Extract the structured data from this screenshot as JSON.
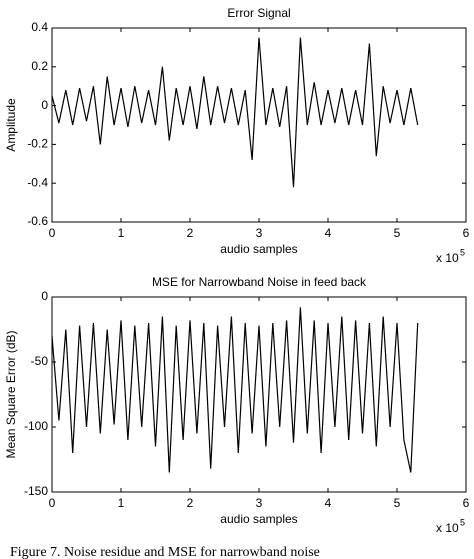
{
  "chart_data": [
    {
      "type": "line",
      "title": "Error Signal",
      "x_label": "audio samples",
      "y_label": "Amplitude",
      "x_multiplier": "x 10",
      "x_exponent": "5",
      "color": "#000000",
      "xlim": [
        0,
        6
      ],
      "xticks": [
        0,
        1,
        2,
        3,
        4,
        5,
        6
      ],
      "ylim": [
        -0.6,
        0.4
      ],
      "yticks": [
        -0.6,
        -0.4,
        -0.2,
        0,
        0.2,
        0.4
      ],
      "x": [
        0,
        0.1,
        0.2,
        0.3,
        0.4,
        0.5,
        0.6,
        0.7,
        0.8,
        0.9,
        1.0,
        1.1,
        1.2,
        1.3,
        1.4,
        1.5,
        1.6,
        1.7,
        1.8,
        1.9,
        2.0,
        2.1,
        2.2,
        2.3,
        2.4,
        2.5,
        2.6,
        2.7,
        2.8,
        2.9,
        3.0,
        3.1,
        3.2,
        3.3,
        3.4,
        3.5,
        3.6,
        3.7,
        3.8,
        3.9,
        4.0,
        4.1,
        4.2,
        4.3,
        4.4,
        4.5,
        4.6,
        4.7,
        4.8,
        4.9,
        5.0,
        5.1,
        5.2,
        5.3
      ],
      "values": [
        0.05,
        -0.09,
        0.08,
        -0.1,
        0.09,
        -0.08,
        0.1,
        -0.2,
        0.15,
        -0.1,
        0.09,
        -0.11,
        0.1,
        -0.09,
        0.08,
        -0.1,
        0.2,
        -0.18,
        0.09,
        -0.1,
        0.1,
        -0.12,
        0.15,
        -0.1,
        0.1,
        -0.09,
        0.09,
        -0.1,
        0.08,
        -0.28,
        0.35,
        -0.1,
        0.09,
        -0.11,
        0.1,
        -0.42,
        0.35,
        -0.1,
        0.12,
        -0.1,
        0.08,
        -0.09,
        0.09,
        -0.1,
        0.08,
        -0.1,
        0.32,
        -0.26,
        0.1,
        -0.09,
        0.08,
        -0.1,
        0.09,
        -0.1
      ]
    },
    {
      "type": "line",
      "title": "MSE for Narrowband Noise in feed back",
      "x_label": "audio samples",
      "y_label": "Mean Square Error (dB)",
      "x_multiplier": "x 10",
      "x_exponent": "5",
      "color": "#000000",
      "xlim": [
        0,
        6
      ],
      "xticks": [
        0,
        1,
        2,
        3,
        4,
        5,
        6
      ],
      "ylim": [
        -150,
        0
      ],
      "yticks": [
        -150,
        -100,
        -50,
        0
      ],
      "x": [
        0,
        0.1,
        0.2,
        0.3,
        0.4,
        0.5,
        0.6,
        0.7,
        0.8,
        0.9,
        1.0,
        1.1,
        1.2,
        1.3,
        1.4,
        1.5,
        1.6,
        1.7,
        1.8,
        1.9,
        2.0,
        2.1,
        2.2,
        2.3,
        2.4,
        2.5,
        2.6,
        2.7,
        2.8,
        2.9,
        3.0,
        3.1,
        3.2,
        3.3,
        3.4,
        3.5,
        3.6,
        3.7,
        3.8,
        3.9,
        4.0,
        4.1,
        4.2,
        4.3,
        4.4,
        4.5,
        4.6,
        4.7,
        4.8,
        4.9,
        5.0,
        5.1,
        5.2,
        5.3
      ],
      "values": [
        -30,
        -95,
        -25,
        -120,
        -22,
        -100,
        -20,
        -105,
        -25,
        -98,
        -18,
        -110,
        -22,
        -100,
        -20,
        -115,
        -15,
        -135,
        -22,
        -110,
        -18,
        -105,
        -20,
        -132,
        -22,
        -100,
        -15,
        -120,
        -20,
        -105,
        -22,
        -115,
        -20,
        -100,
        -18,
        -112,
        -8,
        -105,
        -18,
        -120,
        -20,
        -100,
        -15,
        -110,
        -18,
        -105,
        -20,
        -115,
        -15,
        -100,
        -20,
        -110,
        -135,
        -20
      ]
    }
  ],
  "caption": "Figure 7.    Noise residue and MSE for narrowband noise"
}
